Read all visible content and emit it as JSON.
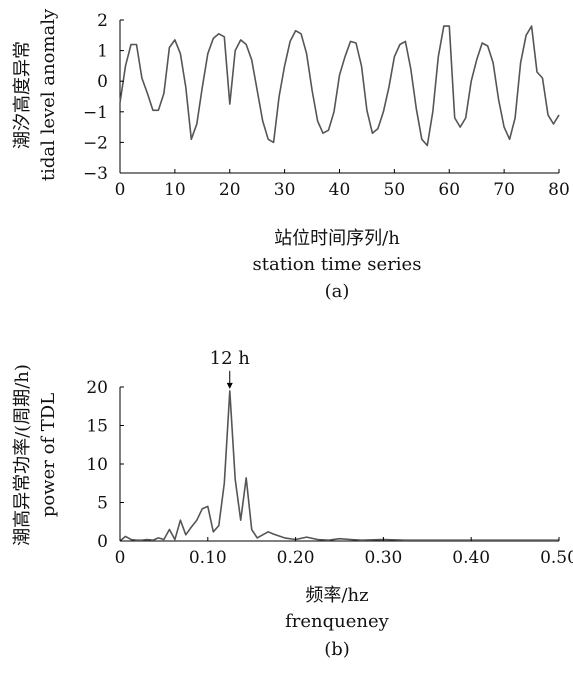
{
  "chart_data": [
    {
      "type": "line",
      "panel_label": "(a)",
      "xlabel": "站位时间序列/h",
      "xlabel_en": "station time series",
      "ylabel": "潮汐高度异常",
      "ylabel_en": "tidal level anomaly",
      "xlim": [
        0,
        80
      ],
      "ylim": [
        -3,
        2
      ],
      "xticks": [
        0,
        10,
        20,
        30,
        40,
        50,
        60,
        70,
        80
      ],
      "yticks": [
        -3,
        -2,
        -1,
        0,
        1,
        2
      ],
      "series": [
        {
          "color": "#555555",
          "x": [
            0,
            1,
            2,
            3,
            4,
            5,
            6,
            7,
            8,
            9,
            10,
            11,
            12,
            13,
            14,
            15,
            16,
            17,
            18,
            19,
            20,
            21,
            22,
            23,
            24,
            25,
            26,
            27,
            28,
            29,
            30,
            31,
            32,
            33,
            34,
            35,
            36,
            37,
            38,
            39,
            40,
            41,
            42,
            43,
            44,
            45,
            46,
            47,
            48,
            49,
            50,
            51,
            52,
            53,
            54,
            55,
            56,
            57,
            58,
            59,
            60,
            61,
            62,
            63,
            64,
            65,
            66,
            67,
            68,
            69,
            70,
            71,
            72,
            73,
            74,
            75,
            76,
            77,
            78,
            79,
            80
          ],
          "y": [
            -0.7,
            0.5,
            1.2,
            1.2,
            0.1,
            -0.4,
            -0.95,
            -0.95,
            -0.4,
            1.1,
            1.35,
            0.9,
            -0.2,
            -1.9,
            -1.4,
            -0.2,
            0.9,
            1.4,
            1.55,
            1.45,
            -0.75,
            1.0,
            1.35,
            1.2,
            0.7,
            -0.3,
            -1.3,
            -1.9,
            -2.0,
            -0.5,
            0.5,
            1.3,
            1.65,
            1.55,
            0.9,
            -0.3,
            -1.3,
            -1.7,
            -1.6,
            -1.0,
            0.2,
            0.8,
            1.3,
            1.25,
            0.5,
            -0.95,
            -1.7,
            -1.55,
            -1.0,
            -0.2,
            0.8,
            1.2,
            1.3,
            0.4,
            -0.9,
            -1.9,
            -2.1,
            -1.0,
            0.8,
            1.8,
            1.8,
            -1.2,
            -1.5,
            -1.2,
            0.0,
            0.7,
            1.25,
            1.15,
            0.6,
            -0.6,
            -1.5,
            -1.9,
            -1.2,
            0.6,
            1.5,
            1.8,
            0.3,
            0.1,
            -1.1,
            -1.4,
            -1.1
          ]
        }
      ]
    },
    {
      "type": "line",
      "panel_label": "(b)",
      "xlabel": "频率/hz",
      "xlabel_en": "frenqueney",
      "ylabel": "潮高异常功率/(周期/h)",
      "ylabel_en": "power of TDL",
      "xlim": [
        0,
        0.5
      ],
      "ylim": [
        0,
        20
      ],
      "xticks": [
        "0",
        "0.10",
        "0.20",
        "0.30",
        "0.40",
        "0.50"
      ],
      "xtick_values": [
        0,
        0.1,
        0.2,
        0.3,
        0.4,
        0.5
      ],
      "yticks": [
        0,
        5,
        10,
        15,
        20
      ],
      "annotation": {
        "text": "12 h",
        "x": 0.125,
        "y": 19.5
      },
      "series": [
        {
          "color": "#555555",
          "x": [
            0,
            0.00625,
            0.0125,
            0.01875,
            0.025,
            0.03125,
            0.0375,
            0.04375,
            0.05,
            0.05625,
            0.0625,
            0.06875,
            0.075,
            0.08125,
            0.0875,
            0.09375,
            0.1,
            0.10625,
            0.1125,
            0.11875,
            0.125,
            0.13125,
            0.1375,
            0.14375,
            0.15,
            0.15625,
            0.1625,
            0.16875,
            0.175,
            0.1875,
            0.2,
            0.2125,
            0.225,
            0.2375,
            0.25,
            0.2625,
            0.275,
            0.3,
            0.325,
            0.35,
            0.375,
            0.4,
            0.425,
            0.45,
            0.475,
            0.5
          ],
          "y": [
            0,
            0.6,
            0.2,
            0.1,
            0.1,
            0.2,
            0.1,
            0.4,
            0.2,
            1.5,
            0.2,
            2.7,
            0.8,
            1.8,
            2.7,
            4.2,
            4.5,
            1.2,
            2.0,
            7.5,
            19.5,
            8.0,
            2.7,
            8.2,
            1.5,
            0.4,
            0.8,
            1.2,
            0.9,
            0.4,
            0.2,
            0.5,
            0.2,
            0.1,
            0.3,
            0.2,
            0.1,
            0.2,
            0.1,
            0.1,
            0.1,
            0.1,
            0.1,
            0.1,
            0.1,
            0.1
          ]
        }
      ]
    }
  ]
}
